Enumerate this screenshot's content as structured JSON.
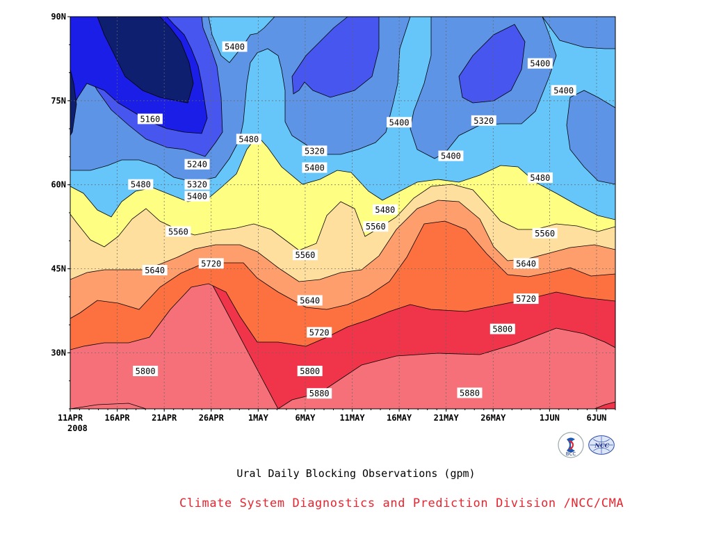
{
  "chart_data": {
    "type": "heatmap",
    "title": "Ural Daily Blocking Observations (gpm)",
    "y_ticks": [
      "90N",
      "75N",
      "60N",
      "45N",
      "30N"
    ],
    "y_tick_values": [
      90,
      75,
      60,
      45,
      30
    ],
    "ylim": [
      20,
      90
    ],
    "x_ticks": [
      "11APR",
      "16APR",
      "21APR",
      "26APR",
      "1MAY",
      "6MAY",
      "11MAY",
      "16MAY",
      "21MAY",
      "26MAY",
      "1JUN",
      "6JUN"
    ],
    "x_tick_days": [
      0,
      5,
      10,
      15,
      20,
      25,
      30,
      35,
      40,
      45,
      51,
      56
    ],
    "x_start_year": "2008",
    "xlim_days": [
      0,
      58
    ],
    "grid": true,
    "contour_levels": [
      5160,
      5240,
      5320,
      5400,
      5480,
      5560,
      5640,
      5720,
      5800,
      5880
    ],
    "contour_labels": [
      {
        "text": "5400",
        "day": 17.5,
        "lat": 84.6
      },
      {
        "text": "5400",
        "day": 50,
        "lat": 81.6
      },
      {
        "text": "5400",
        "day": 52.5,
        "lat": 76.8
      },
      {
        "text": "5160",
        "day": 8.5,
        "lat": 71.7
      },
      {
        "text": "5480",
        "day": 19,
        "lat": 68.1
      },
      {
        "text": "5320",
        "day": 26,
        "lat": 66.0
      },
      {
        "text": "5400",
        "day": 35,
        "lat": 71.1
      },
      {
        "text": "5320",
        "day": 44,
        "lat": 71.4
      },
      {
        "text": "5400",
        "day": 40.5,
        "lat": 65.1
      },
      {
        "text": "5240",
        "day": 13.5,
        "lat": 63.6
      },
      {
        "text": "5400",
        "day": 26,
        "lat": 63.0
      },
      {
        "text": "5320",
        "day": 13.5,
        "lat": 60.0
      },
      {
        "text": "5480",
        "day": 7.5,
        "lat": 60.0
      },
      {
        "text": "5480",
        "day": 50,
        "lat": 61.2
      },
      {
        "text": "5400",
        "day": 13.5,
        "lat": 57.9
      },
      {
        "text": "5480",
        "day": 33.5,
        "lat": 55.5
      },
      {
        "text": "5560",
        "day": 11.5,
        "lat": 51.6
      },
      {
        "text": "5560",
        "day": 32.5,
        "lat": 52.5
      },
      {
        "text": "5560",
        "day": 25,
        "lat": 47.4
      },
      {
        "text": "5560",
        "day": 50.5,
        "lat": 51.3
      },
      {
        "text": "5720",
        "day": 15,
        "lat": 45.9
      },
      {
        "text": "5640",
        "day": 9,
        "lat": 44.7
      },
      {
        "text": "5640",
        "day": 48.5,
        "lat": 45.9
      },
      {
        "text": "5640",
        "day": 25.5,
        "lat": 39.3
      },
      {
        "text": "5720",
        "day": 48.5,
        "lat": 39.6
      },
      {
        "text": "5720",
        "day": 26.5,
        "lat": 33.6
      },
      {
        "text": "5800",
        "day": 46,
        "lat": 34.2
      },
      {
        "text": "5800",
        "day": 8,
        "lat": 26.7
      },
      {
        "text": "5800",
        "day": 25.5,
        "lat": 26.7
      },
      {
        "text": "5880",
        "day": 42.5,
        "lat": 22.8
      },
      {
        "text": "5880",
        "day": 26.5,
        "lat": 13.2
      }
    ],
    "band_colors": {
      "lt5160": "#0f1f70",
      "5160_5240": "#1a1ee6",
      "5240_5320": "#4656ee",
      "5320_5400": "#5e94e6",
      "5400_5480": "#66c6fa",
      "5480_5560": "#fefe82",
      "5560_5640": "#fedf9e",
      "5640_5720": "#fd9e6c",
      "5720_5800": "#fd7040",
      "5800_5880": "#f57078",
      "gt5880": "#f0344a"
    }
  },
  "footer": {
    "title": "Ural Daily Blocking Observations (gpm)",
    "credit": "Climate System Diagnostics and Prediction Division /NCC/CMA"
  },
  "logos": {
    "bcc_text": "BCC",
    "ncc_text": "NCC"
  }
}
